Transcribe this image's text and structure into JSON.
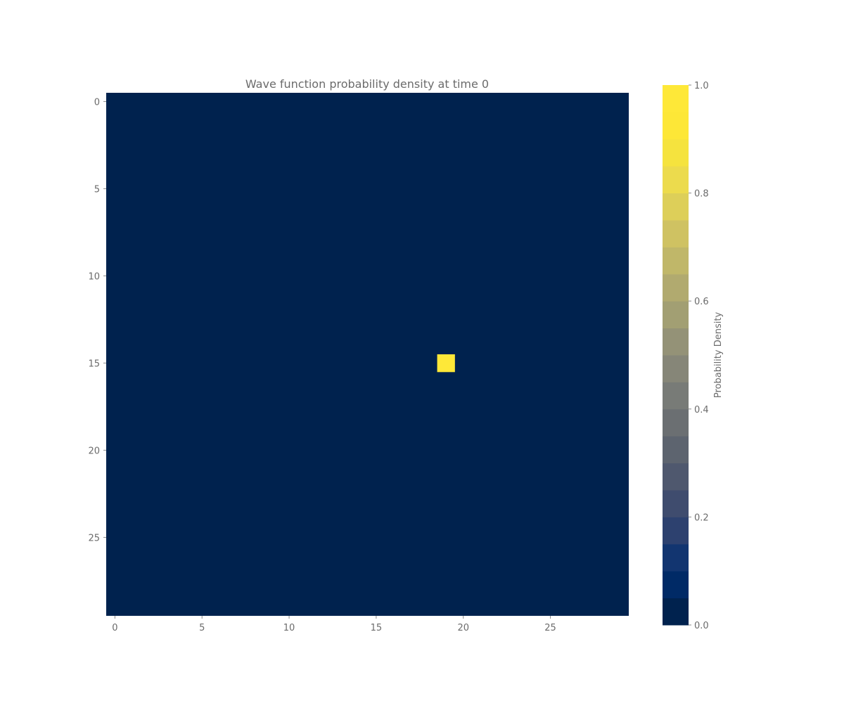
{
  "chart_data": {
    "type": "heatmap",
    "title": "Wave function probability density at time 0",
    "x_ticks": [
      "0",
      "5",
      "10",
      "15",
      "20",
      "25"
    ],
    "y_ticks": [
      "0",
      "5",
      "10",
      "15",
      "20",
      "25"
    ],
    "grid_size": [
      30,
      30
    ],
    "background_value": 0.0,
    "peaks": [
      {
        "row": 15,
        "col": 19,
        "value": 1.0
      }
    ],
    "value_range": [
      0.0,
      1.0
    ],
    "colormap": "cividis",
    "colorbar": {
      "label": "Probability Density",
      "ticks": [
        "0.0",
        "0.2",
        "0.4",
        "0.6",
        "0.8",
        "1.0"
      ],
      "levels": 20,
      "colors": [
        "#00224e",
        "#002a66",
        "#123570",
        "#2d416f",
        "#3f4c6e",
        "#4f586e",
        "#5d646f",
        "#6b6f72",
        "#787b77",
        "#868678",
        "#949277",
        "#a29f73",
        "#b1aa6f",
        "#c0b769",
        "#cfc262",
        "#ddcf59",
        "#ecdb4d",
        "#f5e33e",
        "#fde737",
        "#fee838"
      ]
    }
  }
}
